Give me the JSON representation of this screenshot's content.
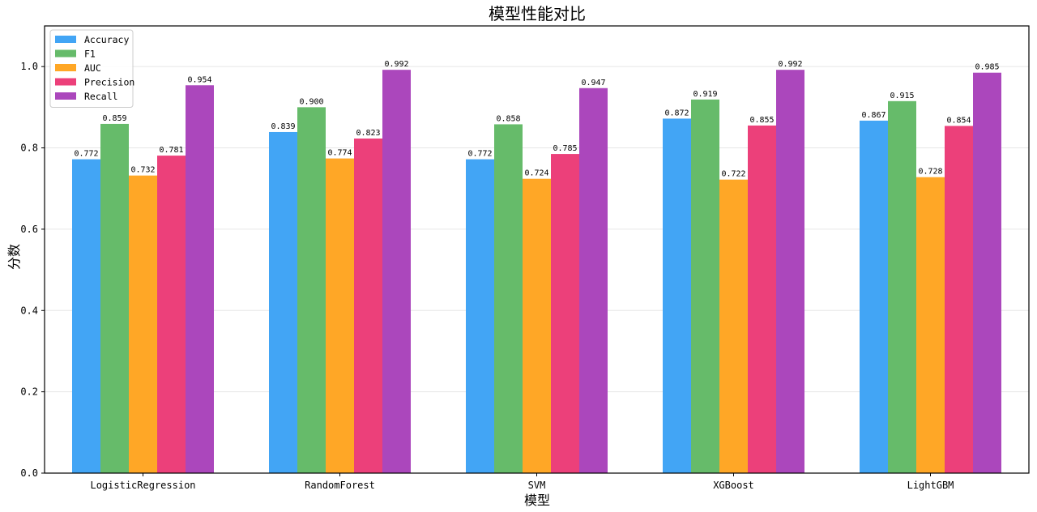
{
  "chart_data": {
    "type": "bar",
    "title": "模型性能对比",
    "xlabel": "模型",
    "ylabel": "分数",
    "categories": [
      "LogisticRegression",
      "RandomForest",
      "SVM",
      "XGBoost",
      "LightGBM"
    ],
    "series": [
      {
        "name": "Accuracy",
        "color": "#42a5f5",
        "values": [
          0.772,
          0.839,
          0.772,
          0.872,
          0.867
        ]
      },
      {
        "name": "F1",
        "color": "#66bb6a",
        "values": [
          0.859,
          0.9,
          0.858,
          0.919,
          0.915
        ]
      },
      {
        "name": "AUC",
        "color": "#ffa726",
        "values": [
          0.732,
          0.774,
          0.724,
          0.722,
          0.728
        ]
      },
      {
        "name": "Precision",
        "color": "#ec407a",
        "values": [
          0.781,
          0.823,
          0.785,
          0.855,
          0.854
        ]
      },
      {
        "name": "Recall",
        "color": "#ab47bc",
        "values": [
          0.954,
          0.992,
          0.947,
          0.992,
          0.985
        ]
      }
    ],
    "ylim": [
      0,
      1.1
    ],
    "yticks": [
      "0.0",
      "0.2",
      "0.4",
      "0.6",
      "0.8",
      "1.0"
    ],
    "grid": true,
    "legend_position": "top-left"
  }
}
